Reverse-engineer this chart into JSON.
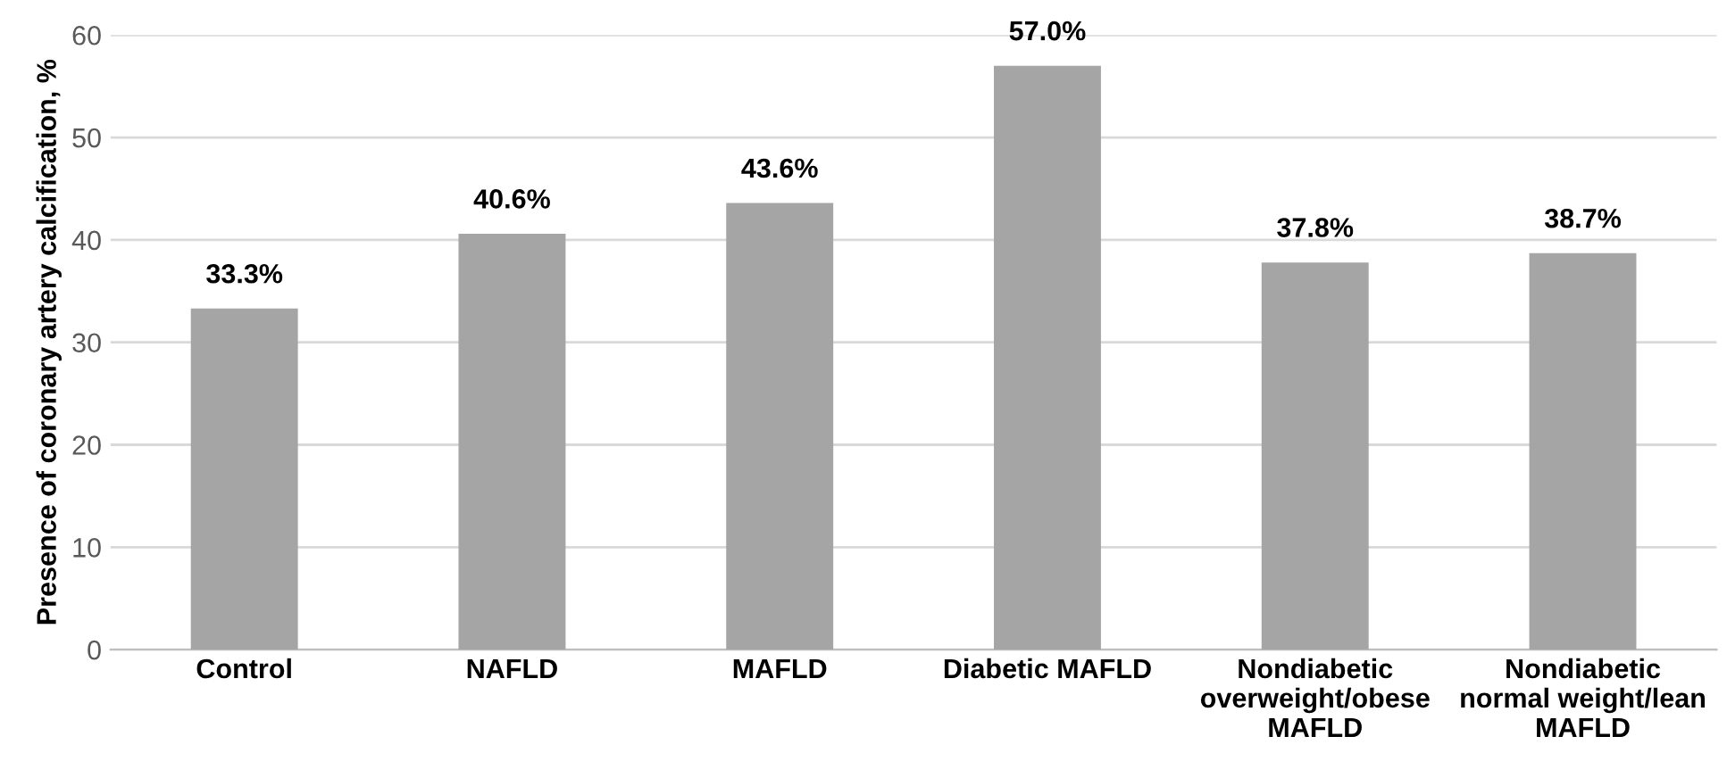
{
  "chart_data": {
    "type": "bar",
    "ylabel": "Presence of coronary artery calcification, %",
    "categories": [
      "Control",
      "NAFLD",
      "MAFLD",
      "Diabetic MAFLD",
      "Nondiabetic\noverweight/obese\nMAFLD",
      "Nondiabetic\nnormal weight/lean\nMAFLD"
    ],
    "values": [
      33.3,
      40.6,
      43.6,
      57.0,
      37.8,
      38.7
    ],
    "value_labels": [
      "33.3%",
      "40.6%",
      "43.6%",
      "57.0%",
      "37.8%",
      "38.7%"
    ],
    "color": "#a5a5a5",
    "ylim": [
      0,
      60
    ],
    "yticks": [
      0,
      10,
      20,
      30,
      40,
      50,
      60
    ],
    "grid": "y"
  }
}
